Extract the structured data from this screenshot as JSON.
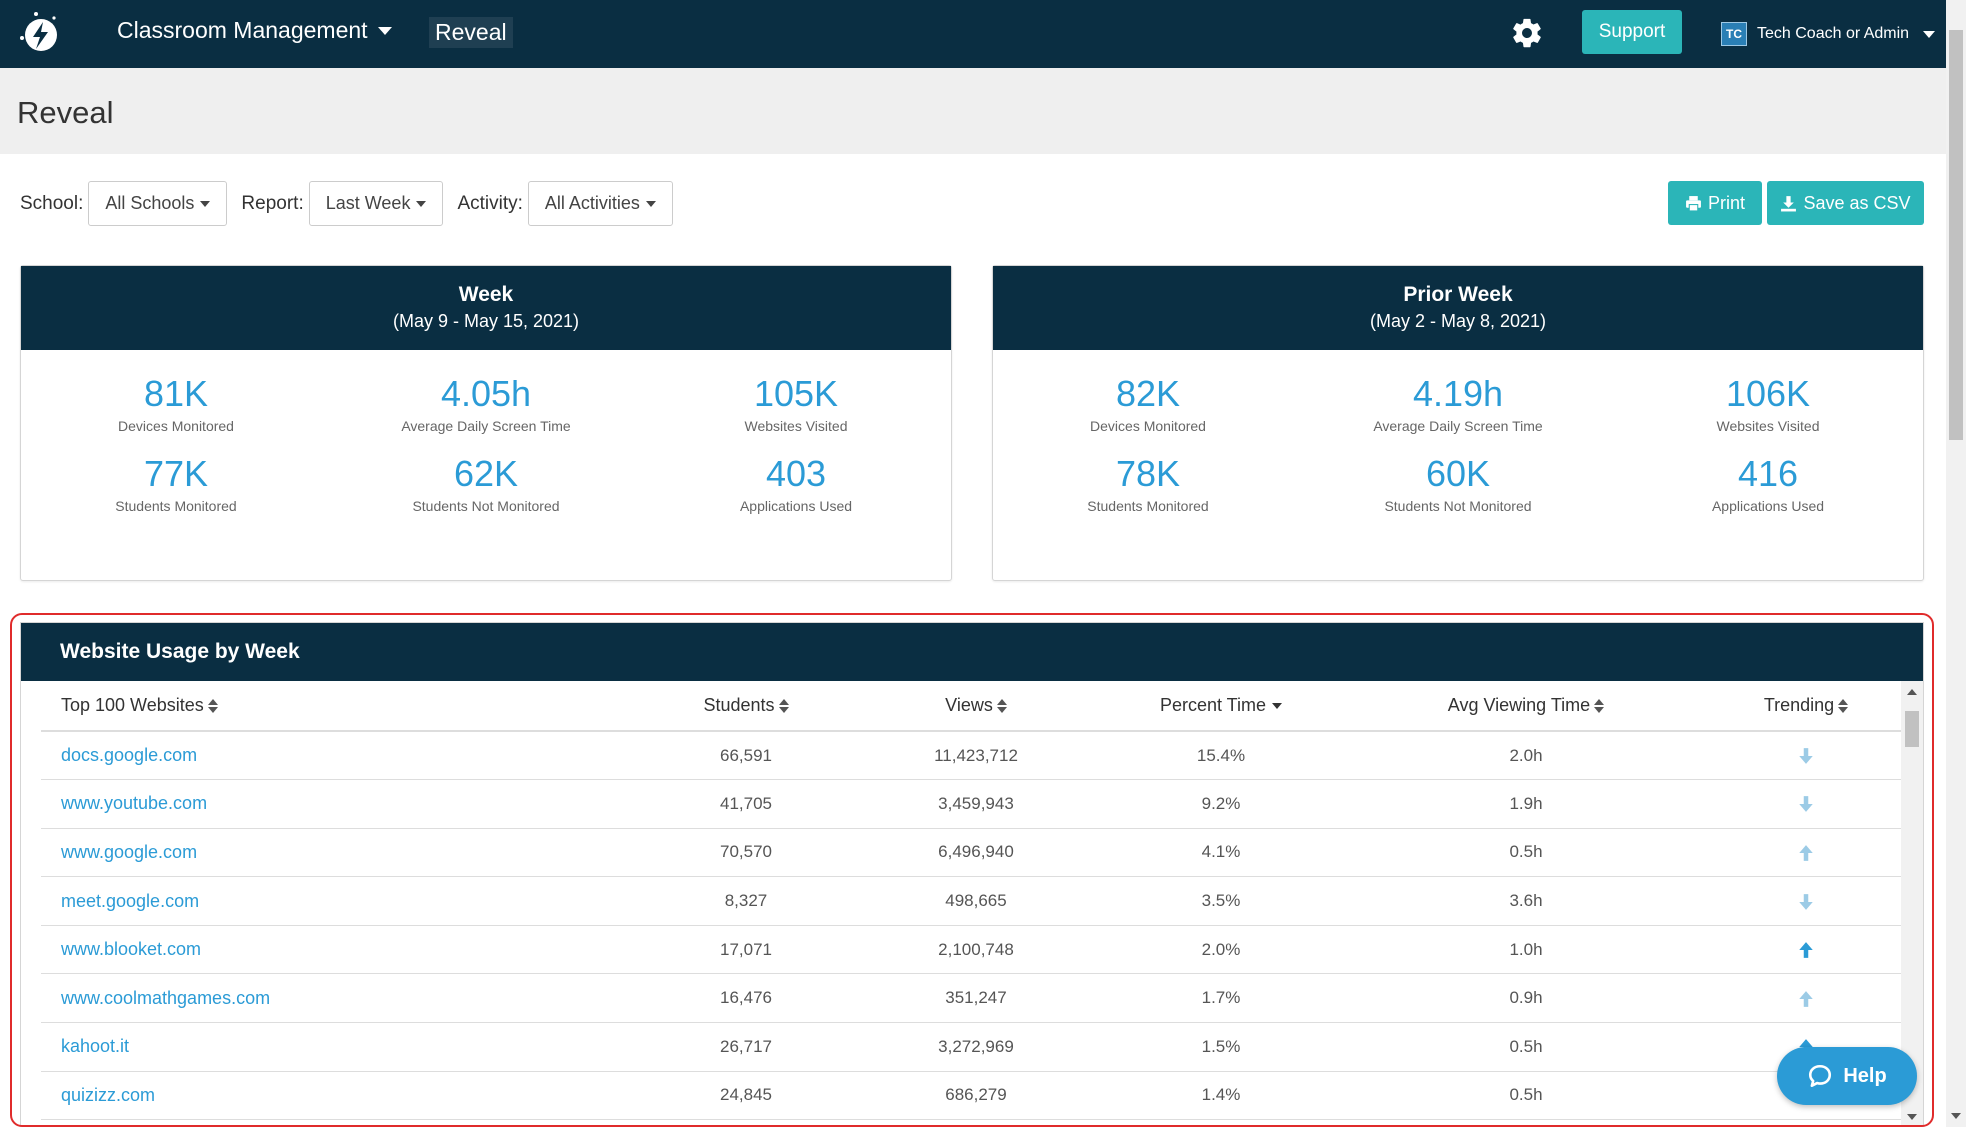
{
  "nav": {
    "menu_label": "Classroom Management",
    "current_app": "Reveal",
    "support_label": "Support",
    "user_initials": "TC",
    "user_name": "Tech Coach or Admin"
  },
  "page": {
    "title": "Reveal"
  },
  "filters": {
    "school_label": "School:",
    "school_value": "All Schools",
    "report_label": "Report:",
    "report_value": "Last Week",
    "activity_label": "Activity:",
    "activity_value": "All Activities"
  },
  "actions": {
    "print_label": "Print",
    "csv_label": "Save as CSV"
  },
  "week": {
    "title": "Week",
    "range": "(May 9 - May 15, 2021)",
    "stats": [
      {
        "value": "81K",
        "label": "Devices Monitored"
      },
      {
        "value": "4.05h",
        "label": "Average Daily Screen Time"
      },
      {
        "value": "105K",
        "label": "Websites Visited"
      },
      {
        "value": "77K",
        "label": "Students Monitored"
      },
      {
        "value": "62K",
        "label": "Students Not Monitored"
      },
      {
        "value": "403",
        "label": "Applications Used"
      }
    ]
  },
  "prior_week": {
    "title": "Prior Week",
    "range": "(May 2 - May 8, 2021)",
    "stats": [
      {
        "value": "82K",
        "label": "Devices Monitored"
      },
      {
        "value": "4.19h",
        "label": "Average Daily Screen Time"
      },
      {
        "value": "106K",
        "label": "Websites Visited"
      },
      {
        "value": "78K",
        "label": "Students Monitored"
      },
      {
        "value": "60K",
        "label": "Students Not Monitored"
      },
      {
        "value": "416",
        "label": "Applications Used"
      }
    ]
  },
  "usage": {
    "title": "Website Usage by Week",
    "columns": [
      "Top 100 Websites",
      "Students",
      "Views",
      "Percent Time",
      "Avg Viewing Time",
      "Trending"
    ],
    "rows": [
      {
        "site": "docs.google.com",
        "students": "66,591",
        "views": "11,423,712",
        "pct": "15.4%",
        "avg": "2.0h",
        "trend": "down-light"
      },
      {
        "site": "www.youtube.com",
        "students": "41,705",
        "views": "3,459,943",
        "pct": "9.2%",
        "avg": "1.9h",
        "trend": "down-light"
      },
      {
        "site": "www.google.com",
        "students": "70,570",
        "views": "6,496,940",
        "pct": "4.1%",
        "avg": "0.5h",
        "trend": "up-light"
      },
      {
        "site": "meet.google.com",
        "students": "8,327",
        "views": "498,665",
        "pct": "3.5%",
        "avg": "3.6h",
        "trend": "down-light"
      },
      {
        "site": "www.blooket.com",
        "students": "17,071",
        "views": "2,100,748",
        "pct": "2.0%",
        "avg": "1.0h",
        "trend": "up-strong"
      },
      {
        "site": "www.coolmathgames.com",
        "students": "16,476",
        "views": "351,247",
        "pct": "1.7%",
        "avg": "0.9h",
        "trend": "up-light"
      },
      {
        "site": "kahoot.it",
        "students": "26,717",
        "views": "3,272,969",
        "pct": "1.5%",
        "avg": "0.5h",
        "trend": "up-strong"
      },
      {
        "site": "quizizz.com",
        "students": "24,845",
        "views": "686,279",
        "pct": "1.4%",
        "avg": "0.5h",
        "trend": ""
      }
    ]
  },
  "help": {
    "label": "Help"
  },
  "colors": {
    "navy": "#0a2e42",
    "teal": "#2bb5b8",
    "accent_blue": "#2b9bd6",
    "trend_light": "#9ccbe6",
    "trend_strong": "#2b9bd6",
    "highlight_red": "#e02b2b"
  }
}
